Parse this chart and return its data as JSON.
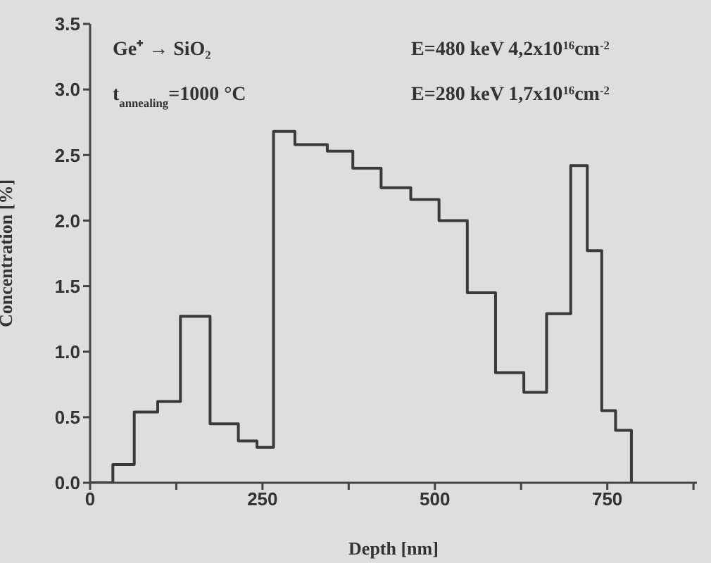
{
  "chart_data": {
    "type": "step",
    "xlabel": "Depth [nm]",
    "ylabel": "Concentration [%]",
    "annotations": [
      "Ge⁺ → SiO₂",
      "t$_{annealing}$=1000 °C",
      "E=480 keV 4,2x10$^{16}$cm$^{-2}$",
      "E=280 keV 1,7x10$^{16}$cm$^{-2}$"
    ],
    "x": [
      0,
      33,
      64,
      98,
      131,
      174,
      215,
      242,
      266,
      297,
      344,
      381,
      422,
      465,
      506,
      547,
      588,
      629,
      662,
      697,
      721,
      742,
      762,
      785
    ],
    "series": [
      {
        "color": "#3a3a3a",
        "values": [
          0,
          0.14,
          0.54,
          0.62,
          1.27,
          0.45,
          0.32,
          0.27,
          2.68,
          2.58,
          2.53,
          2.4,
          2.25,
          2.16,
          2.0,
          1.45,
          0.84,
          0.69,
          1.29,
          2.42,
          1.77,
          0.55,
          0.4,
          0
        ]
      }
    ],
    "xlim": [
      0,
      880
    ],
    "xticks": [
      0,
      {
        "value": 125,
        "label": null
      },
      250,
      {
        "value": 375,
        "label": null
      },
      500,
      {
        "value": 625,
        "label": null
      },
      750,
      {
        "value": 875,
        "label": null
      }
    ],
    "ylim": [
      0,
      3.5
    ],
    "yticks": [
      {
        "value": 0,
        "label": "0.0"
      },
      {
        "value": 0.5,
        "label": "0.5"
      },
      {
        "value": 1,
        "label": "1.0"
      },
      {
        "value": 1.5,
        "label": "1.5"
      },
      {
        "value": 2,
        "label": "2.0"
      },
      {
        "value": 2.5,
        "label": "2.5"
      },
      {
        "value": 3,
        "label": "3.0"
      },
      {
        "value": 3.5,
        "label": "3.5"
      }
    ],
    "grid": false,
    "legend": false,
    "marker": "none",
    "line_style": "solid"
  }
}
